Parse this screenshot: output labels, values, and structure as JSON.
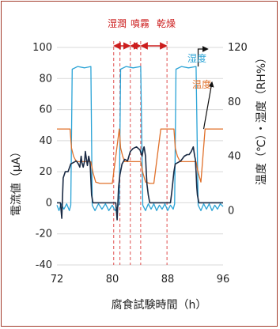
{
  "chart_data": {
    "type": "line",
    "xlabel": "腐食試験時間（h）",
    "ylabel_left": "電流値（μA）",
    "ylabel_right": "温度（℃）・湿度（RH%）",
    "x_ticks": [
      "72",
      "80",
      "88",
      "96"
    ],
    "y_left_ticks": [
      "100",
      "80",
      "60",
      "40",
      "20",
      "0",
      "-20",
      "-40"
    ],
    "y_right_ticks": [
      "120",
      "80",
      "40",
      "0"
    ],
    "xlim": [
      72,
      96
    ],
    "ylim_left": [
      -40,
      100
    ],
    "ylim_right": [
      -40,
      120
    ],
    "phase_labels": [
      "湿潤",
      "噴霧",
      "乾燥"
    ],
    "phase_lines_x": [
      80.2,
      81.1,
      82.6,
      84.1,
      87.9
    ],
    "series": [
      {
        "name": "湿度",
        "axis": "right",
        "color": "#2aa3d6",
        "x": [
          72.0,
          72.3,
          72.6,
          73.0,
          73.4,
          73.8,
          74.0,
          74.2,
          75.0,
          76.0,
          76.9,
          77.1,
          77.5,
          78.0,
          78.5,
          79.0,
          79.5,
          80.0,
          80.4,
          80.8,
          81.0,
          81.2,
          82.0,
          83.0,
          84.1,
          84.4,
          84.8,
          85.2,
          85.6,
          86.0,
          86.4,
          86.8,
          87.2,
          87.6,
          88.0,
          88.4,
          88.8,
          89.0,
          89.2,
          90.0,
          91.0,
          92.1,
          92.4,
          92.8,
          93.2,
          93.6,
          94.0,
          94.4,
          94.8,
          95.2,
          95.6,
          96.0
        ],
        "y": [
          4,
          0,
          5,
          1,
          5,
          0,
          4,
          104,
          106,
          105,
          106,
          4,
          0,
          5,
          1,
          5,
          0,
          4,
          0,
          3,
          5,
          104,
          106,
          105,
          106,
          4,
          0,
          5,
          1,
          5,
          0,
          4,
          1,
          5,
          0,
          4,
          1,
          5,
          104,
          106,
          105,
          106,
          4,
          0,
          5,
          1,
          5,
          0,
          4,
          1,
          5,
          3
        ]
      },
      {
        "name": "温度",
        "axis": "right",
        "color": "#e0702a",
        "x": [
          72.0,
          73.9,
          74.1,
          74.4,
          74.8,
          76.0,
          76.9,
          77.2,
          77.6,
          78.2,
          79.0,
          80.0,
          81.0,
          81.2,
          81.5,
          81.8,
          82.2,
          83.0,
          84.1,
          84.4,
          84.8,
          85.4,
          86.0,
          87.0,
          88.9,
          89.1,
          89.4,
          89.8,
          90.5,
          92.1,
          92.4,
          92.8,
          93.4,
          96.0
        ],
        "y": [
          60,
          60,
          46,
          40,
          36,
          36,
          36,
          28,
          21,
          20,
          20,
          20,
          60,
          46,
          40,
          36,
          36,
          36,
          36,
          28,
          21,
          20,
          20,
          60,
          60,
          46,
          40,
          36,
          36,
          36,
          28,
          21,
          60,
          60
        ]
      },
      {
        "name": "",
        "axis": "left",
        "color": "#1a2a44",
        "x": [
          72.0,
          72.3,
          72.5,
          72.7,
          72.9,
          73.2,
          73.6,
          74.0,
          74.4,
          74.8,
          75.1,
          75.3,
          75.5,
          75.6,
          75.8,
          76.0,
          76.1,
          76.3,
          76.4,
          76.6,
          76.8,
          76.9,
          77.0,
          77.2,
          77.5,
          78.0,
          79.0,
          80.0,
          80.5,
          80.7,
          80.9,
          81.1,
          81.4,
          81.8,
          82.2,
          82.6,
          83.0,
          83.5,
          84.0,
          84.3,
          84.5,
          84.6,
          84.8,
          84.9,
          85.0,
          85.2,
          85.4,
          86.0,
          87.0,
          88.0,
          88.4,
          88.6,
          88.9,
          89.1,
          89.5,
          89.9,
          90.4,
          90.8,
          91.1,
          91.4,
          91.7,
          91.9,
          92.0,
          92.1,
          92.2,
          92.3,
          92.5,
          93.0,
          94.0,
          96.0
        ],
        "y": [
          0,
          0,
          0,
          -10,
          16,
          20,
          20,
          25,
          26,
          27,
          25,
          23,
          30,
          26,
          23,
          27,
          33,
          27,
          24,
          30,
          25,
          15,
          5,
          0,
          0,
          0,
          0,
          0,
          0,
          -11,
          10,
          18,
          25,
          28,
          27,
          33,
          35,
          36,
          34,
          30,
          35,
          36,
          30,
          20,
          12,
          5,
          0,
          0,
          0,
          0,
          0,
          7,
          20,
          25,
          26,
          27,
          30,
          31,
          31,
          33,
          36,
          30,
          28,
          20,
          10,
          5,
          0,
          0,
          0,
          0
        ]
      }
    ]
  }
}
